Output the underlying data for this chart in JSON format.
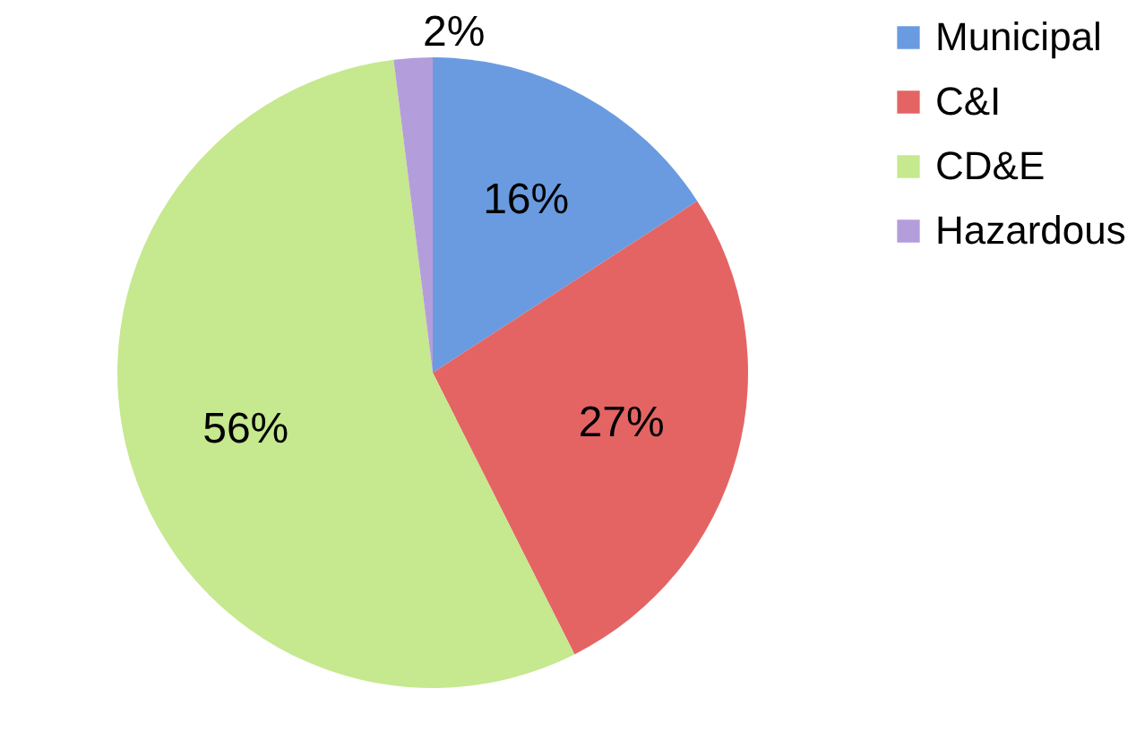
{
  "chart_data": {
    "type": "pie",
    "categories": [
      "Municipal",
      "C&I",
      "CD&E",
      "Hazardous"
    ],
    "values": [
      16,
      27,
      56,
      2
    ],
    "colors": [
      "#6a9be0",
      "#e46464",
      "#c6e88e",
      "#b39ddb"
    ],
    "value_labels": [
      "16%",
      "27%",
      "56%",
      "2%"
    ],
    "legend": "right"
  }
}
